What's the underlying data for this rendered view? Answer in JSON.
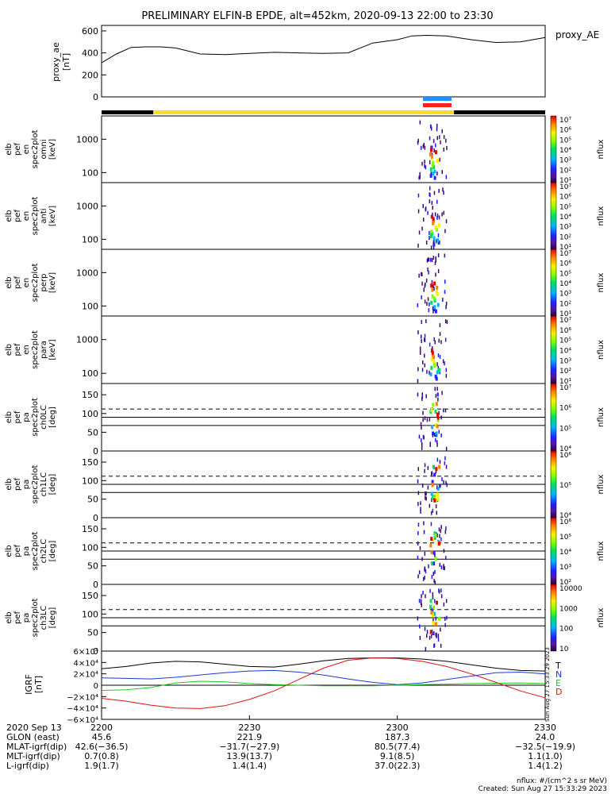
{
  "title": "PRELIMINARY ELFIN-B EPDE, alt=452km, 2020-09-13 22:00 to 23:30",
  "proxy_ae": {
    "ylabel_lines": [
      "proxy_ae",
      "[nT]"
    ],
    "legend": "proxy_AE",
    "yticks": [
      0,
      200,
      400,
      600
    ],
    "ylim": [
      0,
      650
    ],
    "t": [
      0,
      3,
      6,
      9,
      12,
      15,
      20,
      25,
      30,
      35,
      40,
      45,
      50,
      55,
      60,
      63,
      66,
      70,
      75,
      80,
      85,
      90
    ],
    "v": [
      310,
      390,
      450,
      455,
      455,
      445,
      390,
      385,
      395,
      405,
      400,
      395,
      400,
      490,
      520,
      555,
      560,
      555,
      520,
      495,
      500,
      540
    ]
  },
  "indicators": {
    "bar_colors": [
      "#1f8fff",
      "#ff2020"
    ],
    "bar_t": [
      65.2,
      71.0
    ],
    "track": [
      {
        "t0": 0,
        "t1": 10.5,
        "color": "#000000"
      },
      {
        "t0": 10.5,
        "t1": 71.5,
        "color": "#f8e020"
      },
      {
        "t0": 71.5,
        "t1": 90,
        "color": "#000000"
      }
    ]
  },
  "spectrograms": [
    {
      "label_lines": [
        "elb",
        "pef",
        "en",
        "spec2plot",
        "omni",
        "[keV]"
      ],
      "yaxis": "log",
      "yticks": [
        100,
        1000
      ],
      "ytick_labels": [
        "100",
        "1000"
      ],
      "colorbar": "flux7",
      "kind": "energy"
    },
    {
      "label_lines": [
        "elb",
        "pef",
        "en",
        "spec2plot",
        "anti",
        "[keV]"
      ],
      "yaxis": "log",
      "yticks": [
        100,
        1000
      ],
      "ytick_labels": [
        "100",
        "1000"
      ],
      "colorbar": "flux7",
      "kind": "energy"
    },
    {
      "label_lines": [
        "elb",
        "pef",
        "en",
        "spec2plot",
        "perp",
        "[keV]"
      ],
      "yaxis": "log",
      "yticks": [
        100,
        1000
      ],
      "ytick_labels": [
        "100",
        "1000"
      ],
      "colorbar": "flux7",
      "kind": "energy"
    },
    {
      "label_lines": [
        "elb",
        "pef",
        "en",
        "spec2plot",
        "para",
        "[keV]"
      ],
      "yaxis": "log",
      "yticks": [
        100,
        1000
      ],
      "ytick_labels": [
        "100",
        "1000"
      ],
      "colorbar": "flux7",
      "kind": "energy"
    },
    {
      "label_lines": [
        "elb",
        "pef",
        "pa",
        "spec2plot",
        "ch0LC",
        "[deg]"
      ],
      "yaxis": "linear",
      "yticks": [
        0,
        50,
        100,
        150
      ],
      "ytick_labels": [
        "0",
        "50",
        "100",
        "150"
      ],
      "colorbar": "flux4a",
      "kind": "pa"
    },
    {
      "label_lines": [
        "elb",
        "pef",
        "pa",
        "spec2plot",
        "ch1LC",
        "[deg]"
      ],
      "yaxis": "linear",
      "yticks": [
        0,
        50,
        100,
        150
      ],
      "ytick_labels": [
        "0",
        "50",
        "100",
        "150"
      ],
      "colorbar": "flux4b",
      "kind": "pa"
    },
    {
      "label_lines": [
        "elb",
        "pef",
        "pa",
        "spec2plot",
        "ch2LC",
        "[deg]"
      ],
      "yaxis": "linear",
      "yticks": [
        0,
        50,
        100,
        150
      ],
      "ytick_labels": [
        "0",
        "50",
        "100",
        "150"
      ],
      "colorbar": "flux5",
      "kind": "pa"
    },
    {
      "label_lines": [
        "elb",
        "pef",
        "pa",
        "spec2plot",
        "ch3LC",
        "[deg]"
      ],
      "yaxis": "linear",
      "yticks": [
        0,
        50,
        100,
        150
      ],
      "ytick_labels": [
        "0",
        "50",
        "100",
        "150"
      ],
      "colorbar": "flux4c",
      "kind": "pa"
    }
  ],
  "colorbars": {
    "flux7": {
      "unit": "nflux",
      "ticks": [
        "10¹",
        "10²",
        "10³",
        "10⁴",
        "10⁵",
        "10⁶",
        "10⁷"
      ]
    },
    "flux4a": {
      "unit": "nflux",
      "ticks": [
        "10⁴",
        "10⁵",
        "10⁶",
        "10⁷"
      ]
    },
    "flux4b": {
      "unit": "nflux",
      "ticks": [
        "10⁴",
        "10⁵",
        "10⁶"
      ]
    },
    "flux5": {
      "unit": "nflux",
      "ticks": [
        "10²",
        "10³",
        "10⁴",
        "10⁵",
        "10⁶"
      ]
    },
    "flux4c": {
      "unit": "nflux",
      "ticks": [
        "10",
        "100",
        "1000",
        "10000"
      ]
    }
  },
  "pa_reference_lines": {
    "dashed": 112,
    "solid": [
      90,
      68
    ]
  },
  "bfield": {
    "ylabel_lines": [
      "IGRF",
      "[nT]"
    ],
    "yticks": [
      -60000,
      -40000,
      -20000,
      0,
      20000,
      40000,
      60000
    ],
    "ytick_labels": [
      "−6×10⁴",
      "−4×10⁴",
      "−2×10⁴",
      "0",
      "2×10⁴",
      "4×10⁴",
      "6×10⁴"
    ],
    "ylim": [
      -60000,
      60000
    ],
    "legend": [
      {
        "label": "T",
        "color": "#000000"
      },
      {
        "label": "N",
        "color": "#1a3ad6"
      },
      {
        "label": "E",
        "color": "#1ec81e"
      },
      {
        "label": "D",
        "color": "#e01010"
      }
    ],
    "stamp": "Sun Aug 27 15:33:29 2023",
    "t": [
      0,
      5,
      10,
      15,
      20,
      25,
      30,
      35,
      40,
      45,
      50,
      55,
      60,
      65,
      70,
      75,
      80,
      85,
      90
    ],
    "series": {
      "T": [
        29000,
        33000,
        39000,
        42000,
        41000,
        37000,
        33000,
        32000,
        37000,
        43000,
        47000,
        48000,
        48000,
        46000,
        42000,
        36000,
        30000,
        26000,
        25000
      ],
      "N": [
        13000,
        12000,
        11000,
        14000,
        18000,
        22000,
        25000,
        26000,
        23000,
        18000,
        11000,
        5000,
        1000,
        4000,
        10000,
        16000,
        22000,
        23000,
        20000
      ],
      "E": [
        -9000,
        -8000,
        -4000,
        4000,
        7000,
        6000,
        3000,
        1000,
        0,
        -1000,
        -1000,
        -1000,
        0,
        1000,
        2000,
        3000,
        3500,
        4000,
        3000
      ],
      "D": [
        -23000,
        -28000,
        -35000,
        -40000,
        -41000,
        -36000,
        -25000,
        -10000,
        10000,
        30000,
        44000,
        48000,
        47000,
        42000,
        33000,
        20000,
        5000,
        -10000,
        -22000
      ]
    }
  },
  "time_axis": {
    "ticks": [
      0,
      30,
      60,
      90
    ],
    "labels": {
      "date": "2020 Sep 13",
      "glon": "GLON (east)",
      "mlat": "MLAT-igrf(dip)",
      "mlt": "MLT-igrf(dip)",
      "lshell": "L-igrf(dip)"
    },
    "columns": [
      {
        "time": "2200",
        "glon": "45.6",
        "mlat": "42.6(−36.5)",
        "mlt": "0.7(0.8)",
        "lshell": "1.9(1.7)"
      },
      {
        "time": "2230",
        "glon": "221.9",
        "mlat": "−31.7(−27.9)",
        "mlt": "13.9(13.7)",
        "lshell": "1.4(1.4)"
      },
      {
        "time": "2300",
        "glon": "187.3",
        "mlat": "80.5(77.4)",
        "mlt": "9.1(8.5)",
        "lshell": "37.0(22.3)"
      },
      {
        "time": "2330",
        "glon": "24.0",
        "mlat": "−32.5(−19.9)",
        "mlt": "1.1(1.0)",
        "lshell": "1.4(1.2)"
      }
    ]
  },
  "footer": {
    "line1": "nflux: #/(cm^2 s sr MeV)",
    "line2": "Created: Sun Aug 27 15:33:29 2023"
  },
  "chart_data": {
    "type": "line",
    "title": "PRELIMINARY ELFIN-B EPDE, alt=452km, 2020-09-13 22:00 to 23:30",
    "xlabel": "",
    "xtick_labels": [
      "2200",
      "2230",
      "2300",
      "2330"
    ],
    "panels": [
      "proxy_ae",
      "spec2plot omni",
      "spec2plot anti",
      "spec2plot perp",
      "spec2plot para",
      "ch0LC",
      "ch1LC",
      "ch2LC",
      "ch3LC",
      "IGRF"
    ],
    "grid": false
  }
}
